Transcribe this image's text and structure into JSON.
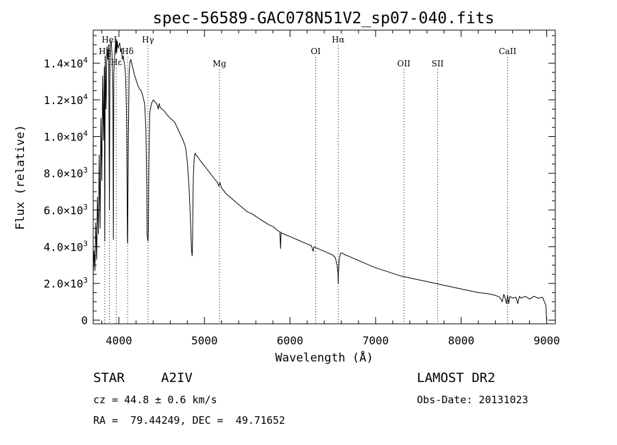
{
  "chart_data": {
    "type": "line",
    "title": "spec-56589-GAC078N51V2_sp07-040.fits",
    "xlabel": "Wavelength (Å)",
    "ylabel": "Flux (relative)",
    "xlim": [
      3700,
      9100
    ],
    "ylim": [
      -200,
      15800
    ],
    "x_ticks": [
      {
        "value": 4000,
        "label": "4000"
      },
      {
        "value": 5000,
        "label": "5000"
      },
      {
        "value": 6000,
        "label": "6000"
      },
      {
        "value": 7000,
        "label": "7000"
      },
      {
        "value": 8000,
        "label": "8000"
      },
      {
        "value": 9000,
        "label": "9000"
      }
    ],
    "y_ticks": [
      {
        "value": 0,
        "mant": "0",
        "exp": ""
      },
      {
        "value": 2000,
        "mant": "2.0×10",
        "exp": "3"
      },
      {
        "value": 4000,
        "mant": "4.0×10",
        "exp": "3"
      },
      {
        "value": 6000,
        "mant": "6.0×10",
        "exp": "3"
      },
      {
        "value": 8000,
        "mant": "8.0×10",
        "exp": "3"
      },
      {
        "value": 10000,
        "mant": "1.0×10",
        "exp": "4"
      },
      {
        "value": 12000,
        "mant": "1.2×10",
        "exp": "4"
      },
      {
        "value": 14000,
        "mant": "1.4×10",
        "exp": "4"
      }
    ],
    "spectral_lines": [
      {
        "label": "Hη",
        "wavelength": 3835,
        "row": 3
      },
      {
        "label": "HeI",
        "wavelength": 3888,
        "row": 1
      },
      {
        "label": "Hε",
        "wavelength": 3970,
        "row": 4
      },
      {
        "label": "Hδ",
        "wavelength": 4102,
        "row": 3
      },
      {
        "label": "Hγ",
        "wavelength": 4340,
        "row": 1
      },
      {
        "label": "Mg",
        "wavelength": 5175,
        "row": 5
      },
      {
        "label": "OI",
        "wavelength": 6300,
        "row": 3
      },
      {
        "label": "Hα",
        "wavelength": 6563,
        "row": 1
      },
      {
        "label": "OII",
        "wavelength": 7330,
        "row": 5
      },
      {
        "label": "SII",
        "wavelength": 7725,
        "row": 5
      },
      {
        "label": "CaII",
        "wavelength": 8542,
        "row": 3
      }
    ],
    "series": [
      {
        "name": "flux",
        "x": [
          3700,
          3710,
          3720,
          3730,
          3740,
          3750,
          3760,
          3770,
          3780,
          3790,
          3800,
          3810,
          3820,
          3830,
          3835,
          3840,
          3850,
          3860,
          3870,
          3880,
          3889,
          3895,
          3900,
          3910,
          3920,
          3930,
          3935,
          3940,
          3950,
          3960,
          3965,
          3970,
          3975,
          3980,
          3990,
          4000,
          4010,
          4020,
          4030,
          4040,
          4050,
          4060,
          4070,
          4080,
          4090,
          4095,
          4100,
          4102,
          4105,
          4110,
          4120,
          4130,
          4140,
          4150,
          4160,
          4180,
          4200,
          4220,
          4240,
          4260,
          4280,
          4300,
          4315,
          4325,
          4330,
          4335,
          4340,
          4345,
          4350,
          4360,
          4380,
          4400,
          4420,
          4440,
          4460,
          4470,
          4480,
          4500,
          4530,
          4560,
          4600,
          4650,
          4700,
          4750,
          4780,
          4800,
          4820,
          4835,
          4845,
          4850,
          4855,
          4858,
          4862,
          4866,
          4870,
          4875,
          4880,
          4890,
          4900,
          4920,
          4950,
          5000,
          5050,
          5100,
          5150,
          5170,
          5180,
          5200,
          5250,
          5300,
          5350,
          5400,
          5450,
          5500,
          5550,
          5600,
          5650,
          5700,
          5750,
          5800,
          5850,
          5880,
          5890,
          5895,
          5900,
          5950,
          6000,
          6050,
          6100,
          6150,
          6200,
          6250,
          6270,
          6280,
          6300,
          6350,
          6400,
          6450,
          6500,
          6530,
          6550,
          6560,
          6563,
          6566,
          6575,
          6590,
          6610,
          6650,
          6700,
          6750,
          6800,
          6900,
          7000,
          7100,
          7200,
          7300,
          7400,
          7500,
          7600,
          7700,
          7800,
          7900,
          8000,
          8100,
          8200,
          8300,
          8400,
          8450,
          8480,
          8498,
          8510,
          8530,
          8542,
          8555,
          8570,
          8600,
          8640,
          8662,
          8680,
          8700,
          8750,
          8800,
          8850,
          8900,
          8950,
          8990,
          9000
        ],
        "flux": [
          2500,
          3800,
          2700,
          5300,
          3300,
          6700,
          4700,
          9000,
          5000,
          11000,
          7600,
          13300,
          9800,
          13800,
          4300,
          14400,
          11500,
          14900,
          14200,
          15000,
          6000,
          13500,
          15100,
          15200,
          14400,
          12500,
          4400,
          13500,
          14300,
          15100,
          14500,
          15300,
          14600,
          15200,
          14800,
          15000,
          15100,
          14600,
          14800,
          14200,
          14400,
          14100,
          13800,
          13200,
          11000,
          7800,
          4300,
          4200,
          6500,
          10000,
          13500,
          14100,
          14200,
          14000,
          13800,
          13400,
          13100,
          12800,
          12600,
          12500,
          12200,
          11800,
          10500,
          7500,
          4700,
          4400,
          4300,
          5000,
          8500,
          11300,
          11800,
          12000,
          11900,
          11800,
          11500,
          11800,
          11600,
          11500,
          11400,
          11200,
          11000,
          10800,
          10300,
          9800,
          9400,
          8600,
          7200,
          5600,
          4300,
          3800,
          3500,
          3700,
          4800,
          6500,
          7800,
          8400,
          8800,
          9100,
          9000,
          8900,
          8700,
          8400,
          8100,
          7800,
          7500,
          7300,
          7500,
          7200,
          6900,
          6700,
          6500,
          6300,
          6100,
          5900,
          5800,
          5650,
          5500,
          5350,
          5200,
          5100,
          4900,
          4800,
          3900,
          4800,
          4750,
          4650,
          4550,
          4450,
          4350,
          4250,
          4150,
          4050,
          3750,
          4000,
          3950,
          3850,
          3750,
          3650,
          3550,
          3400,
          3000,
          2600,
          2000,
          2600,
          3300,
          3650,
          3650,
          3550,
          3450,
          3350,
          3250,
          3050,
          2850,
          2700,
          2550,
          2400,
          2300,
          2200,
          2100,
          2000,
          1900,
          1800,
          1700,
          1600,
          1500,
          1450,
          1350,
          1250,
          1000,
          1400,
          1250,
          900,
          1350,
          900,
          1300,
          1200,
          1250,
          900,
          1300,
          1200,
          1300,
          1150,
          1300,
          1200,
          1250,
          800,
          -100
        ]
      }
    ]
  },
  "info": {
    "object_type": "STAR",
    "classification": "A2IV",
    "survey": "LAMOST DR2",
    "redshift": "cz = 44.8 ± 0.6 km/s",
    "obs_date": "Obs-Date: 20131023",
    "coordinates": "RA =  79.44249, DEC =  49.71652"
  }
}
